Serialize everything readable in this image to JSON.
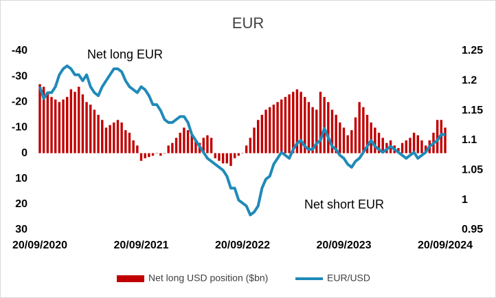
{
  "chart_data": {
    "type": "bar_line",
    "title": "EUR",
    "annotations": [
      "Net long EUR",
      "Net short EUR"
    ],
    "categories": [
      "20/09/2020",
      null,
      null,
      null,
      null,
      null,
      null,
      null,
      null,
      null,
      null,
      null,
      null,
      null,
      null,
      null,
      null,
      null,
      null,
      null,
      null,
      null,
      null,
      null,
      null,
      null,
      "20/09/2021",
      null,
      null,
      null,
      null,
      null,
      null,
      null,
      null,
      null,
      null,
      null,
      null,
      null,
      null,
      null,
      null,
      null,
      null,
      null,
      null,
      null,
      null,
      null,
      null,
      null,
      "20/09/2022",
      null,
      null,
      null,
      null,
      null,
      null,
      null,
      null,
      null,
      null,
      null,
      null,
      null,
      null,
      null,
      null,
      null,
      null,
      null,
      null,
      null,
      null,
      null,
      null,
      null,
      "20/09/2023",
      null,
      null,
      null,
      null,
      null,
      null,
      null,
      null,
      null,
      null,
      null,
      null,
      null,
      null,
      null,
      null,
      null,
      null,
      null,
      null,
      null,
      null,
      null,
      null,
      null,
      "20/09/2024"
    ],
    "series": [
      {
        "name": "Net long USD position ($bn)",
        "type": "bar",
        "axis": "y",
        "color": "#c00000",
        "values": [
          -27,
          -26,
          -24,
          -22,
          -21,
          -20,
          -21,
          -22,
          -25,
          -24,
          -26,
          -23,
          -20,
          -19,
          -17,
          -15,
          -13,
          -10,
          -11,
          -12,
          -13,
          -12,
          -9,
          -8,
          -5,
          -3,
          3,
          2,
          1.5,
          1,
          0,
          1,
          0,
          -3,
          -4,
          -6,
          -8,
          -10,
          -9,
          -7,
          -5,
          -4,
          -6,
          -7,
          -6,
          2,
          3,
          4,
          4,
          5,
          2,
          1,
          0,
          -3,
          -6,
          -10,
          -13,
          -15,
          -17,
          -18,
          -19,
          -20,
          -21,
          -22,
          -23,
          -24,
          -25,
          -24,
          -22,
          -20,
          -18,
          -17,
          -24,
          -22,
          -20,
          -17,
          -15,
          -12,
          -10,
          -7,
          -9,
          -14,
          -20,
          -18,
          -15,
          -12,
          -10,
          -8,
          -6,
          -4,
          -5,
          -3,
          -2,
          -4,
          -5,
          -6,
          -8,
          -7,
          -5,
          -3,
          -5,
          -8,
          -13,
          -13,
          -10
        ]
      },
      {
        "name": "EUR/USD",
        "type": "line",
        "axis": "y2",
        "color": "#1f8ab8",
        "values": [
          1.19,
          1.17,
          1.18,
          1.18,
          1.19,
          1.21,
          1.22,
          1.225,
          1.22,
          1.21,
          1.21,
          1.2,
          1.21,
          1.19,
          1.18,
          1.175,
          1.19,
          1.2,
          1.21,
          1.22,
          1.22,
          1.215,
          1.2,
          1.19,
          1.185,
          1.18,
          1.19,
          1.185,
          1.175,
          1.16,
          1.16,
          1.15,
          1.135,
          1.13,
          1.13,
          1.135,
          1.14,
          1.14,
          1.13,
          1.11,
          1.1,
          1.09,
          1.08,
          1.07,
          1.065,
          1.06,
          1.055,
          1.05,
          1.04,
          1.02,
          1.02,
          1.0,
          0.995,
          0.99,
          0.975,
          0.98,
          0.99,
          1.02,
          1.035,
          1.04,
          1.06,
          1.07,
          1.08,
          1.075,
          1.07,
          1.085,
          1.095,
          1.1,
          1.09,
          1.085,
          1.085,
          1.095,
          1.1,
          1.12,
          1.105,
          1.09,
          1.085,
          1.075,
          1.07,
          1.06,
          1.055,
          1.065,
          1.07,
          1.08,
          1.09,
          1.1,
          1.09,
          1.085,
          1.08,
          1.085,
          1.09,
          1.085,
          1.08,
          1.075,
          1.07,
          1.075,
          1.08,
          1.07,
          1.075,
          1.08,
          1.09,
          1.095,
          1.1,
          1.11,
          1.11
        ]
      }
    ],
    "ylim": [
      -40,
      30
    ],
    "yticks": [
      -40,
      -30,
      -20,
      -10,
      0,
      10,
      20,
      30
    ],
    "y_inverted": true,
    "y2lim": [
      0.95,
      1.25
    ],
    "y2ticks": [
      0.95,
      1,
      1.05,
      1.1,
      1.15,
      1.2,
      1.25
    ],
    "legend": "bottom"
  }
}
